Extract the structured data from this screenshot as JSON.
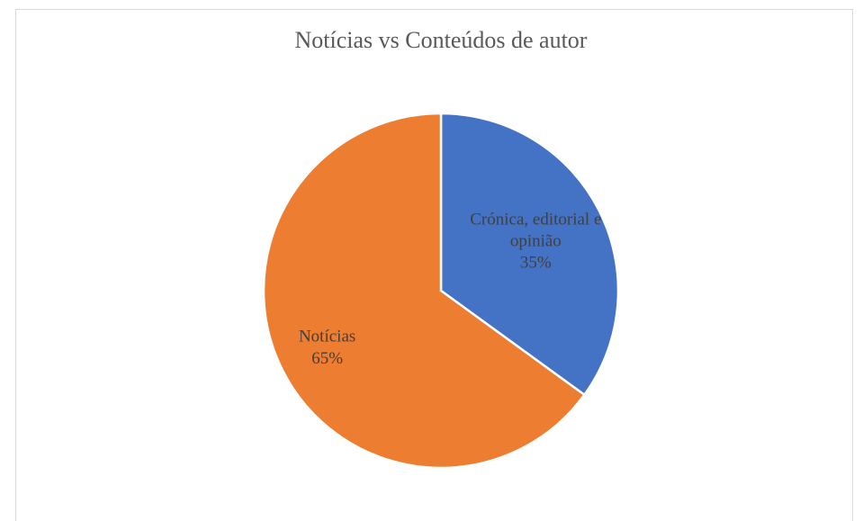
{
  "chart_data": {
    "type": "pie",
    "title": "Notícias vs Conteúdos de autor",
    "categories": [
      "Crónica, editorial e opinião",
      "Notícias"
    ],
    "values": [
      35,
      65
    ],
    "value_labels": [
      "35%",
      "65%"
    ],
    "colors": [
      "#4472c4",
      "#ed7d31"
    ]
  }
}
